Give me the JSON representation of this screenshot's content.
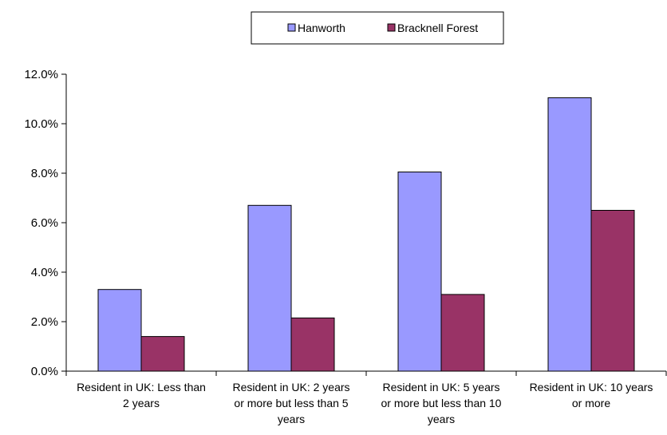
{
  "chart_data": {
    "type": "bar",
    "categories": [
      [
        "Resident in UK: Less than",
        "2 years"
      ],
      [
        "Resident in UK: 2 years",
        "or more but less than 5",
        "years"
      ],
      [
        "Resident in UK: 5 years",
        "or more but less than 10",
        "years"
      ],
      [
        "Resident in UK: 10 years",
        "or more"
      ]
    ],
    "series": [
      {
        "name": "Hanworth",
        "values": [
          3.3,
          6.7,
          8.05,
          11.05
        ],
        "color": "#9999ff"
      },
      {
        "name": "Bracknell Forest",
        "values": [
          1.4,
          2.15,
          3.1,
          6.5
        ],
        "color": "#993366"
      }
    ],
    "yticks": [
      "0.0%",
      "2.0%",
      "4.0%",
      "6.0%",
      "8.0%",
      "10.0%",
      "12.0%"
    ],
    "ylim": [
      0,
      12
    ],
    "title": "",
    "xlabel": "",
    "ylabel": "",
    "legend_position": "top-center",
    "grid": false
  }
}
